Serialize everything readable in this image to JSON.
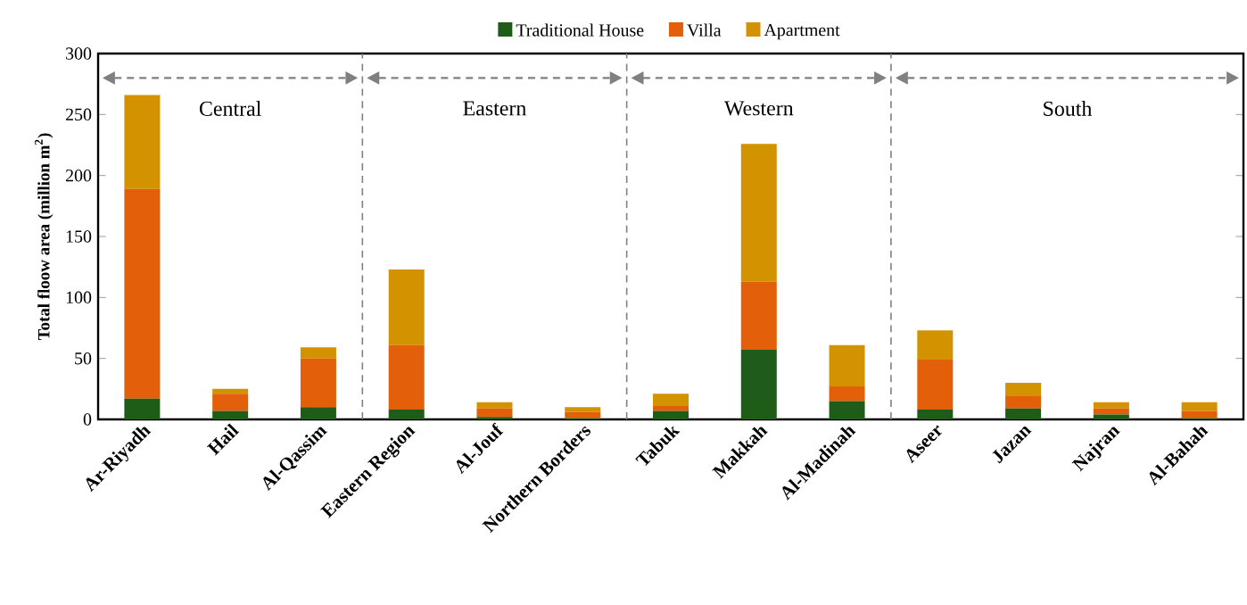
{
  "chart_data": {
    "type": "bar",
    "stacked": true,
    "ylabel": "Total floow area (million m$^{2}$)",
    "categories": [
      "Ar-Riyadh",
      "Hail",
      "Al-Qassim",
      "Eastern Region",
      "Al-Jouf",
      "Northern Borders",
      "Tabuk",
      "Makkah",
      "Al-Madinah",
      "Aseer",
      "Jazan",
      "Najran",
      "Al-Bahah"
    ],
    "series": [
      {
        "name": "Traditional House",
        "color": "#1f5c1a",
        "values": [
          17,
          7,
          10,
          8,
          2,
          1,
          7,
          57,
          15,
          8,
          9,
          4,
          1
        ]
      },
      {
        "name": "Villa",
        "color": "#e35f0a",
        "values": [
          172,
          14,
          40,
          53,
          7,
          5,
          4,
          56,
          12,
          41,
          10,
          5,
          6
        ]
      },
      {
        "name": "Apartment",
        "color": "#d39200",
        "values": [
          77,
          4,
          9,
          62,
          5,
          4,
          10,
          113,
          34,
          24,
          11,
          5,
          7
        ]
      }
    ],
    "ylim": [
      0,
      300
    ],
    "yticks": [
      0,
      50,
      100,
      150,
      200,
      250,
      300
    ],
    "legend": "top",
    "annotations": [
      "Central",
      "Eastern",
      "Western",
      "South"
    ]
  }
}
